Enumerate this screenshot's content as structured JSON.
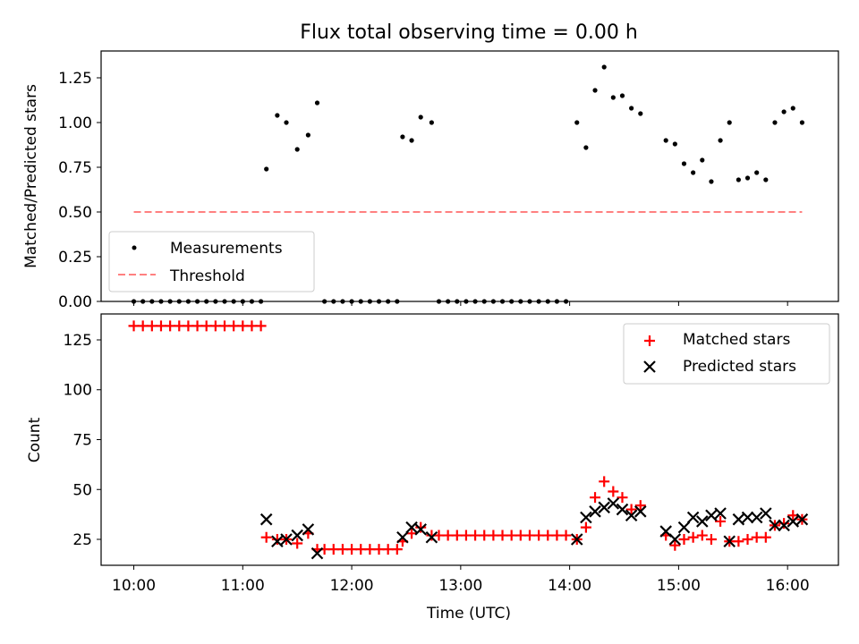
{
  "title": "Flux total observing time = 0.00 h",
  "colors": {
    "measurement": "#000000",
    "threshold": "#ff8080",
    "matched": "#ff0000",
    "predicted": "#000000"
  },
  "chart_data": [
    {
      "type": "scatter",
      "ylabel": "Matched/Predicted stars",
      "xlim": [
        "09:42",
        "16:28"
      ],
      "ylim": [
        0,
        1.4
      ],
      "yticks": [
        "0.00",
        "0.25",
        "0.50",
        "0.75",
        "1.00",
        "1.25"
      ],
      "grid": false,
      "legend_position": "lower-left",
      "series": [
        {
          "name": "Measurements",
          "marker": "dot",
          "x": [
            "10:00",
            "10:05",
            "10:10",
            "10:15",
            "10:20",
            "10:25",
            "10:30",
            "10:35",
            "10:40",
            "10:45",
            "10:50",
            "10:55",
            "11:00",
            "11:05",
            "11:10",
            "11:13",
            "11:19",
            "11:24",
            "11:30",
            "11:36",
            "11:41",
            "11:45",
            "11:50",
            "11:55",
            "12:00",
            "12:05",
            "12:10",
            "12:15",
            "12:20",
            "12:25",
            "12:28",
            "12:33",
            "12:38",
            "12:44",
            "12:48",
            "12:53",
            "12:58",
            "13:03",
            "13:08",
            "13:13",
            "13:18",
            "13:23",
            "13:28",
            "13:33",
            "13:38",
            "13:43",
            "13:48",
            "13:53",
            "13:58",
            "14:04",
            "14:09",
            "14:14",
            "14:19",
            "14:24",
            "14:29",
            "14:34",
            "14:39",
            "14:53",
            "14:58",
            "15:03",
            "15:08",
            "15:13",
            "15:18",
            "15:23",
            "15:28",
            "15:33",
            "15:38",
            "15:43",
            "15:48",
            "15:53",
            "15:58",
            "16:03",
            "16:08"
          ],
          "y": [
            0,
            0,
            0,
            0,
            0,
            0,
            0,
            0,
            0,
            0,
            0,
            0,
            0,
            0,
            0,
            0.74,
            1.04,
            1.0,
            0.85,
            0.93,
            1.11,
            0,
            0,
            0,
            0,
            0,
            0,
            0,
            0,
            0,
            0.92,
            0.9,
            1.03,
            1.0,
            0,
            0,
            0,
            0,
            0,
            0,
            0,
            0,
            0,
            0,
            0,
            0,
            0,
            0,
            0,
            1.0,
            0.86,
            1.18,
            1.31,
            1.14,
            1.15,
            1.08,
            1.05,
            0.9,
            0.88,
            0.77,
            0.72,
            0.79,
            0.67,
            0.9,
            1.0,
            0.68,
            0.69,
            0.72,
            0.68,
            1.0,
            1.06,
            1.08,
            1.0
          ]
        },
        {
          "name": "Threshold",
          "style": "dashed",
          "x": [
            "10:00",
            "16:08"
          ],
          "y": [
            0.5,
            0.5
          ]
        }
      ]
    },
    {
      "type": "scatter",
      "xlabel": "Time (UTC)",
      "ylabel": "Count",
      "xlim": [
        "09:42",
        "16:28"
      ],
      "ylim": [
        12,
        138
      ],
      "xticks": [
        "10:00",
        "11:00",
        "12:00",
        "13:00",
        "14:00",
        "15:00",
        "16:00"
      ],
      "yticks": [
        "25",
        "50",
        "75",
        "100",
        "125"
      ],
      "grid": false,
      "legend_position": "top-right",
      "series": [
        {
          "name": "Matched stars",
          "marker": "plus",
          "x": [
            "10:00",
            "10:05",
            "10:10",
            "10:15",
            "10:20",
            "10:25",
            "10:30",
            "10:35",
            "10:40",
            "10:45",
            "10:50",
            "10:55",
            "11:00",
            "11:05",
            "11:10",
            "11:13",
            "11:19",
            "11:24",
            "11:30",
            "11:36",
            "11:41",
            "11:45",
            "11:50",
            "11:55",
            "12:00",
            "12:05",
            "12:10",
            "12:15",
            "12:20",
            "12:25",
            "12:28",
            "12:33",
            "12:38",
            "12:44",
            "12:48",
            "12:53",
            "12:58",
            "13:03",
            "13:08",
            "13:13",
            "13:18",
            "13:23",
            "13:28",
            "13:33",
            "13:38",
            "13:43",
            "13:48",
            "13:53",
            "13:58",
            "14:04",
            "14:09",
            "14:14",
            "14:19",
            "14:24",
            "14:29",
            "14:34",
            "14:39",
            "14:53",
            "14:58",
            "15:03",
            "15:08",
            "15:13",
            "15:18",
            "15:23",
            "15:28",
            "15:33",
            "15:38",
            "15:43",
            "15:48",
            "15:53",
            "15:58",
            "16:03",
            "16:08"
          ],
          "y": [
            132,
            132,
            132,
            132,
            132,
            132,
            132,
            132,
            132,
            132,
            132,
            132,
            132,
            132,
            132,
            26,
            25,
            25,
            23,
            28,
            20,
            20,
            20,
            20,
            20,
            20,
            20,
            20,
            20,
            20,
            24,
            28,
            31,
            27,
            27,
            27,
            27,
            27,
            27,
            27,
            27,
            27,
            27,
            27,
            27,
            27,
            27,
            27,
            27,
            25,
            31,
            46,
            54,
            49,
            46,
            40,
            42,
            27,
            22,
            25,
            26,
            27,
            25,
            34,
            24,
            24,
            25,
            26,
            26,
            32,
            33,
            37,
            35
          ]
        },
        {
          "name": "Predicted stars",
          "marker": "x",
          "x": [
            "11:13",
            "11:19",
            "11:24",
            "11:30",
            "11:36",
            "11:41",
            "12:28",
            "12:33",
            "12:38",
            "12:44",
            "14:04",
            "14:09",
            "14:14",
            "14:19",
            "14:24",
            "14:29",
            "14:34",
            "14:39",
            "14:53",
            "14:58",
            "15:03",
            "15:08",
            "15:13",
            "15:18",
            "15:23",
            "15:28",
            "15:33",
            "15:38",
            "15:43",
            "15:48",
            "15:53",
            "15:58",
            "16:03",
            "16:08"
          ],
          "y": [
            35,
            24,
            25,
            27,
            30,
            18,
            26,
            31,
            30,
            26,
            25,
            36,
            39,
            41,
            43,
            40,
            37,
            39,
            29,
            25,
            31,
            36,
            34,
            37,
            38,
            24,
            35,
            36,
            36,
            38,
            32,
            32,
            34,
            35
          ]
        }
      ]
    }
  ]
}
